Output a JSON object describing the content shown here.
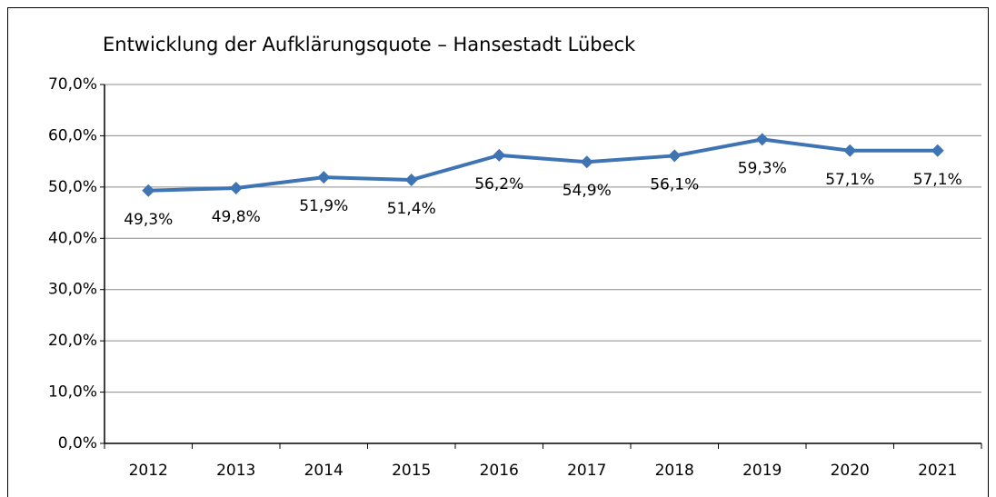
{
  "chart_data": {
    "type": "line",
    "title": "Entwicklung der Aufklärungsquote – Hansestadt Lübeck",
    "categories": [
      "2012",
      "2013",
      "2014",
      "2015",
      "2016",
      "2017",
      "2018",
      "2019",
      "2020",
      "2021"
    ],
    "series": [
      {
        "name": "Aufklärungsquote",
        "color": "#3f74b4",
        "values": [
          49.3,
          49.8,
          51.9,
          51.4,
          56.2,
          54.9,
          56.1,
          59.3,
          57.1,
          57.1
        ],
        "value_labels": [
          "49,3%",
          "49,8%",
          "51,9%",
          "51,4%",
          "56,2%",
          "54,9%",
          "56,1%",
          "59,3%",
          "57,1%",
          "57,1%"
        ]
      }
    ],
    "ylim": [
      0,
      70
    ],
    "yticks": [
      {
        "value": 0,
        "label": "0,0%"
      },
      {
        "value": 10,
        "label": "10,0%"
      },
      {
        "value": 20,
        "label": "20,0%"
      },
      {
        "value": 30,
        "label": "30,0%"
      },
      {
        "value": 40,
        "label": "40,0%"
      },
      {
        "value": 50,
        "label": "50,0%"
      },
      {
        "value": 60,
        "label": "60,0%"
      },
      {
        "value": 70,
        "label": "70,0%"
      }
    ],
    "grid": true
  }
}
